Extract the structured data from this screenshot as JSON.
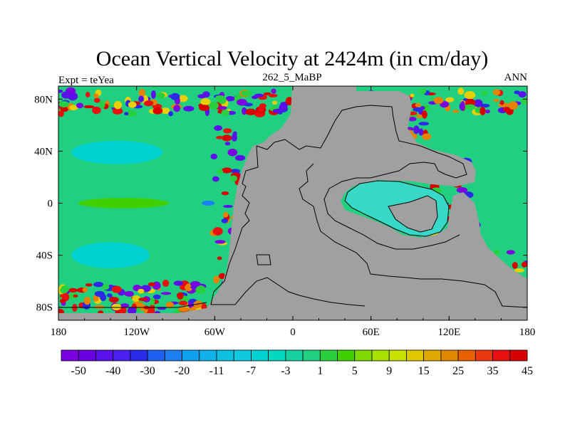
{
  "chart_data": {
    "type": "heatmap",
    "title": "Ocean Vertical Velocity at 2424m (in cm/day)",
    "subtitle_left": "Expt = teYea",
    "subtitle_center": "262_5_MaBP",
    "subtitle_right": "ANN",
    "units": "cm/day",
    "projection": "cylindrical-equidistant",
    "x_range": [
      -180,
      180
    ],
    "y_range": [
      -90,
      90
    ],
    "x_ticks": [
      {
        "value": -180,
        "label": "180"
      },
      {
        "value": -120,
        "label": "120W"
      },
      {
        "value": -60,
        "label": "60W"
      },
      {
        "value": 0,
        "label": "0"
      },
      {
        "value": 60,
        "label": "60E"
      },
      {
        "value": 120,
        "label": "120E"
      },
      {
        "value": 180,
        "label": "180"
      }
    ],
    "y_ticks": [
      {
        "value": 80,
        "label": "80N"
      },
      {
        "value": 40,
        "label": "40N"
      },
      {
        "value": 0,
        "label": "0"
      },
      {
        "value": -40,
        "label": "40S"
      },
      {
        "value": -80,
        "label": "80S"
      }
    ],
    "land_color": "#a0a0a0",
    "background_field_value": -1,
    "contour_levels": [
      -60,
      -50,
      -45,
      -40,
      -35,
      -30,
      -25,
      -20,
      -15,
      -11,
      -9,
      -7,
      -5,
      -3,
      -1,
      1,
      3,
      5,
      7,
      9,
      11,
      15,
      20,
      25,
      30,
      35,
      40,
      45,
      50
    ],
    "colorbar": {
      "colors": [
        "#7a00e0",
        "#6a00e0",
        "#5a10e8",
        "#4a20f0",
        "#2a2ae8",
        "#2060f0",
        "#1c80f0",
        "#10a0f0",
        "#10b0e8",
        "#10c0e0",
        "#10c8e0",
        "#00d0d0",
        "#00d8c0",
        "#18d0a0",
        "#20d080",
        "#28d040",
        "#40d000",
        "#80d800",
        "#a8e000",
        "#c8e000",
        "#e0c800",
        "#e0a800",
        "#e08800",
        "#e86000",
        "#e83810",
        "#e81010",
        "#d80000"
      ],
      "labels": [
        "-50",
        "-40",
        "-30",
        "-20",
        "-11",
        "-7",
        "-3",
        "1",
        "5",
        "9",
        "15",
        "25",
        "35",
        "45"
      ]
    },
    "anomalies": [
      {
        "name": "equatorial-upwelling-band",
        "lon": [
          -165,
          -95
        ],
        "lat": [
          -4,
          4
        ],
        "value": 4
      },
      {
        "name": "north-pacific-gyre",
        "lon": [
          -170,
          -100
        ],
        "lat": [
          30,
          48
        ],
        "value": -7
      },
      {
        "name": "south-pacific-gyre",
        "lon": [
          -170,
          -110
        ],
        "lat": [
          -50,
          -30
        ],
        "value": -7
      },
      {
        "name": "equatorial-blue-spot",
        "lon": [
          -70,
          -60
        ],
        "lat": [
          -2,
          2
        ],
        "value": -25
      }
    ]
  }
}
